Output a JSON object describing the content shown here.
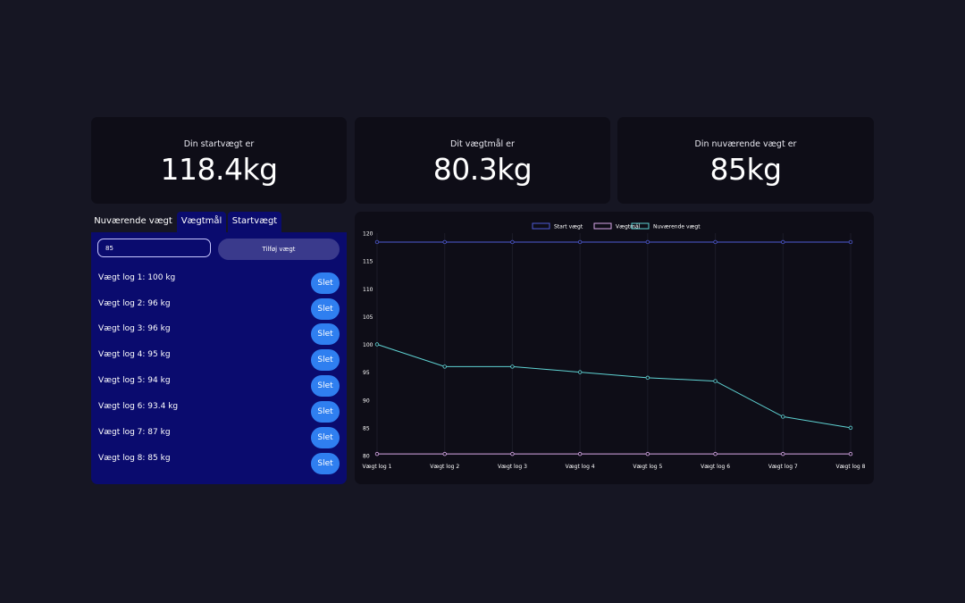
{
  "stats": {
    "start": {
      "label": "Din startvægt er",
      "value": "118.4kg"
    },
    "goal": {
      "label": "Dit vægtmål er",
      "value": "80.3kg"
    },
    "current": {
      "label": "Din nuværende vægt er",
      "value": "85kg"
    }
  },
  "tabs": [
    {
      "label": "Nuværende vægt",
      "active": true
    },
    {
      "label": "Vægtmål",
      "active": false
    },
    {
      "label": "Startvægt",
      "active": false
    }
  ],
  "form": {
    "input_value": "85",
    "add_label": "Tilføj vægt"
  },
  "logs": [
    {
      "text": "Vægt log 1: 100 kg",
      "delete_label": "Slet"
    },
    {
      "text": "Vægt log 2: 96 kg",
      "delete_label": "Slet"
    },
    {
      "text": "Vægt log 3: 96 kg",
      "delete_label": "Slet"
    },
    {
      "text": "Vægt log 4: 95 kg",
      "delete_label": "Slet"
    },
    {
      "text": "Vægt log 5: 94 kg",
      "delete_label": "Slet"
    },
    {
      "text": "Vægt log 6: 93.4 kg",
      "delete_label": "Slet"
    },
    {
      "text": "Vægt log 7: 87 kg",
      "delete_label": "Slet"
    },
    {
      "text": "Vægt log 8: 85 kg",
      "delete_label": "Slet"
    }
  ],
  "chart_data": {
    "type": "line",
    "categories": [
      "Vægt log 1",
      "Vægt log 2",
      "Vægt log 3",
      "Vægt log 4",
      "Vægt log 5",
      "Vægt log 6",
      "Vægt log 7",
      "Vægt log 8"
    ],
    "series": [
      {
        "name": "Start vægt",
        "color": "#4f5bd5",
        "values": [
          118.4,
          118.4,
          118.4,
          118.4,
          118.4,
          118.4,
          118.4,
          118.4
        ]
      },
      {
        "name": "Vægtmål",
        "color": "#d8a8e8",
        "values": [
          80.3,
          80.3,
          80.3,
          80.3,
          80.3,
          80.3,
          80.3,
          80.3
        ]
      },
      {
        "name": "Nuværende vægt",
        "color": "#5fd3d3",
        "values": [
          100,
          96,
          96,
          95,
          94,
          93.4,
          87,
          85
        ]
      }
    ],
    "yticks": [
      80,
      85,
      90,
      95,
      100,
      105,
      110,
      115,
      120
    ],
    "ylim": [
      80,
      120
    ],
    "legend": "top",
    "grid": true
  }
}
